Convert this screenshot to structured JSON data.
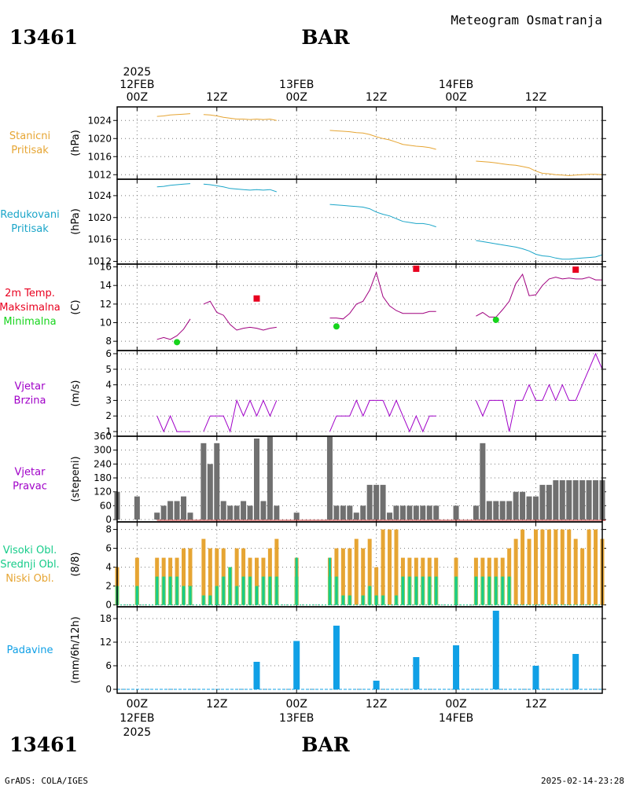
{
  "header": {
    "station_id": "13461",
    "station_name": "BAR",
    "subtitle": "Meteogram Osmatranja"
  },
  "footer": {
    "credit": "GrADS: COLA/IGES",
    "timestamp": "2025-02-14-23:28"
  },
  "time_axis": {
    "range_hours": [
      -3,
      70
    ],
    "ticks": [
      {
        "h": 0,
        "top": [
          "2025",
          "12FEB",
          "00Z"
        ],
        "bottom": [
          "00Z",
          "12FEB",
          "2025"
        ]
      },
      {
        "h": 12,
        "top": [
          "12Z"
        ],
        "bottom": [
          "12Z"
        ]
      },
      {
        "h": 24,
        "top": [
          "13FEB",
          "00Z"
        ],
        "bottom": [
          "00Z",
          "13FEB"
        ]
      },
      {
        "h": 36,
        "top": [
          "12Z"
        ],
        "bottom": [
          "12Z"
        ]
      },
      {
        "h": 48,
        "top": [
          "14FEB",
          "00Z"
        ],
        "bottom": [
          "00Z",
          "14FEB"
        ]
      },
      {
        "h": 60,
        "top": [
          "12Z"
        ],
        "bottom": [
          "12Z"
        ]
      }
    ]
  },
  "colors": {
    "station_pressure": "#e6a533",
    "reduced_pressure": "#1aa5c8",
    "temperature": "#a0007f",
    "max_temp": "#e8001f",
    "min_temp": "#16d41c",
    "wind_speed": "#a000c8",
    "wind_dir": "#707070",
    "wind_dir_base": "#c82828",
    "cloud_high": "#17cc8a",
    "cloud_mid": "#8acc58",
    "cloud_low": "#e6a533",
    "precip": "#10a0e6"
  },
  "chart_data": [
    {
      "type": "line",
      "name": "station-pressure",
      "labels": [
        "Stanicni",
        "Pritisak"
      ],
      "ylabel": "(hPa)",
      "ylim": [
        1011,
        1027
      ],
      "yticks": [
        1012,
        1016,
        1020,
        1024
      ],
      "series": [
        {
          "x": [
            3,
            4,
            5,
            6,
            7,
            8
          ],
          "y": [
            1024.9,
            1025.0,
            1025.2,
            1025.3,
            1025.4,
            1025.5
          ]
        },
        {
          "x": [
            10,
            11,
            12,
            13,
            14,
            15,
            16,
            17,
            18,
            19,
            20,
            21
          ],
          "y": [
            1025.3,
            1025.2,
            1025.0,
            1024.7,
            1024.5,
            1024.3,
            1024.3,
            1024.2,
            1024.3,
            1024.2,
            1024.3,
            1024.0
          ]
        },
        {
          "x": [
            29,
            30,
            31,
            32,
            33,
            34,
            35,
            36,
            37,
            38,
            39,
            40,
            41,
            42,
            43,
            44,
            45
          ],
          "y": [
            1021.8,
            1021.7,
            1021.6,
            1021.5,
            1021.3,
            1021.2,
            1020.9,
            1020.4,
            1020.0,
            1019.7,
            1019.2,
            1018.7,
            1018.5,
            1018.3,
            1018.2,
            1018.0,
            1017.6
          ]
        },
        {
          "x": [
            51,
            52,
            53,
            54,
            55,
            56,
            57,
            58,
            59,
            60,
            61,
            62,
            63,
            64,
            65,
            66,
            67,
            68,
            69,
            70
          ],
          "y": [
            1015.0,
            1014.9,
            1014.8,
            1014.6,
            1014.4,
            1014.2,
            1014.1,
            1013.8,
            1013.5,
            1012.8,
            1012.3,
            1012.2,
            1012.0,
            1011.9,
            1011.8,
            1011.9,
            1012.0,
            1012.1,
            1012.1,
            1012.0
          ]
        }
      ]
    },
    {
      "type": "line",
      "name": "reduced-pressure",
      "labels": [
        "Redukovani",
        "Pritisak"
      ],
      "ylabel": "(hPa)",
      "ylim": [
        1011.5,
        1027
      ],
      "yticks": [
        1012,
        1016,
        1020,
        1024
      ],
      "series": [
        {
          "x": [
            3,
            4,
            5,
            6,
            7,
            8
          ],
          "y": [
            1025.6,
            1025.7,
            1025.9,
            1026.0,
            1026.1,
            1026.2
          ]
        },
        {
          "x": [
            10,
            11,
            12,
            13,
            14,
            15,
            16,
            17,
            18,
            19,
            20,
            21
          ],
          "y": [
            1026.1,
            1026.0,
            1025.8,
            1025.6,
            1025.3,
            1025.2,
            1025.1,
            1025.0,
            1025.1,
            1025.0,
            1025.1,
            1024.7
          ]
        },
        {
          "x": [
            29,
            30,
            31,
            32,
            33,
            34,
            35,
            36,
            37,
            38,
            39,
            40,
            41,
            42,
            43,
            44,
            45
          ],
          "y": [
            1022.4,
            1022.3,
            1022.2,
            1022.1,
            1022.0,
            1021.9,
            1021.6,
            1021.0,
            1020.6,
            1020.3,
            1019.8,
            1019.3,
            1019.1,
            1018.9,
            1018.9,
            1018.7,
            1018.3
          ]
        },
        {
          "x": [
            51,
            52,
            53,
            54,
            55,
            56,
            57,
            58,
            59,
            60,
            61,
            62,
            63,
            64,
            65,
            66,
            67,
            68,
            69,
            70
          ],
          "y": [
            1015.8,
            1015.6,
            1015.4,
            1015.2,
            1015.0,
            1014.8,
            1014.6,
            1014.3,
            1013.9,
            1013.3,
            1013.0,
            1012.9,
            1012.6,
            1012.4,
            1012.4,
            1012.5,
            1012.6,
            1012.7,
            1012.8,
            1013.2
          ]
        }
      ]
    },
    {
      "type": "line",
      "name": "temperature",
      "labels": [
        "2m Temp.",
        "Maksimalna",
        "Minimalna"
      ],
      "ylabel": "(C)",
      "ylim": [
        7,
        16.3
      ],
      "yticks": [
        8,
        10,
        12,
        14,
        16
      ],
      "series": [
        {
          "x": [
            3,
            4,
            5,
            6,
            7,
            8
          ],
          "y": [
            8.2,
            8.4,
            8.2,
            8.6,
            9.3,
            10.4
          ]
        },
        {
          "x": [
            10,
            11,
            12,
            13,
            14,
            15,
            16,
            17,
            18,
            19,
            20,
            21
          ],
          "y": [
            12.0,
            12.3,
            11.1,
            10.8,
            9.8,
            9.2,
            9.4,
            9.5,
            9.4,
            9.2,
            9.4,
            9.5
          ]
        },
        {
          "x": [
            29,
            30,
            31,
            32,
            33,
            34,
            35,
            36,
            37,
            38,
            39,
            40,
            41,
            42,
            43,
            44,
            45
          ],
          "y": [
            10.5,
            10.5,
            10.4,
            11.0,
            12.0,
            12.3,
            13.5,
            15.4,
            12.8,
            11.8,
            11.3,
            11.0,
            11.0,
            11.0,
            11.0,
            11.2,
            11.2
          ]
        },
        {
          "x": [
            51,
            52,
            53,
            54,
            55,
            56,
            57,
            58,
            59,
            60,
            61,
            62,
            63,
            64,
            65,
            66,
            67,
            68,
            69,
            70
          ],
          "y": [
            10.7,
            11.1,
            10.6,
            10.6,
            11.4,
            12.3,
            14.2,
            15.2,
            12.9,
            13.0,
            14.0,
            14.7,
            14.9,
            14.7,
            14.8,
            14.7,
            14.7,
            14.9,
            14.6,
            14.6
          ]
        }
      ],
      "max_points": [
        {
          "x": 18,
          "y": 12.6
        },
        {
          "x": 42,
          "y": 15.8
        },
        {
          "x": 66,
          "y": 15.7
        }
      ],
      "min_points": [
        {
          "x": 6,
          "y": 7.9
        },
        {
          "x": 30,
          "y": 9.6
        },
        {
          "x": 54,
          "y": 10.3
        }
      ]
    },
    {
      "type": "line",
      "name": "wind-speed",
      "labels": [
        "Vjetar",
        "Brzina"
      ],
      "ylabel": "(m/s)",
      "ylim": [
        0.7,
        6.2
      ],
      "yticks": [
        1,
        2,
        3,
        4,
        5,
        6
      ],
      "series": [
        {
          "x": [
            3,
            4,
            5,
            6,
            7,
            8
          ],
          "y": [
            2,
            1,
            2,
            1,
            1,
            1
          ]
        },
        {
          "x": [
            10,
            11,
            12,
            13,
            14,
            15,
            16,
            17,
            18,
            19,
            20,
            21
          ],
          "y": [
            1,
            2,
            2,
            2,
            1,
            3,
            2,
            3,
            2,
            3,
            2,
            3
          ]
        },
        {
          "x": [
            29,
            30,
            31,
            32,
            33,
            34,
            35,
            36,
            37,
            38,
            39,
            40,
            41,
            42,
            43,
            44,
            45
          ],
          "y": [
            1,
            2,
            2,
            2,
            3,
            2,
            3,
            3,
            3,
            2,
            3,
            2,
            1,
            2,
            1,
            2,
            2
          ]
        },
        {
          "x": [
            51,
            52,
            53,
            54,
            55,
            56,
            57,
            58,
            59,
            60,
            61,
            62,
            63,
            64,
            65,
            66,
            67,
            68,
            69,
            70
          ],
          "y": [
            3,
            2,
            3,
            3,
            3,
            1,
            3,
            3,
            4,
            3,
            3,
            4,
            3,
            4,
            3,
            3,
            4,
            5,
            6,
            5
          ]
        }
      ]
    },
    {
      "type": "bar",
      "name": "wind-direction",
      "labels": [
        "Vjetar",
        "Pravac"
      ],
      "ylabel": "(stepeni)",
      "ylim": [
        -10,
        360
      ],
      "yticks": [
        0,
        60,
        120,
        180,
        240,
        300,
        360
      ],
      "x": [
        -3,
        0,
        3,
        4,
        5,
        6,
        7,
        8,
        10,
        11,
        12,
        13,
        14,
        15,
        16,
        17,
        18,
        19,
        20,
        21,
        24,
        29,
        30,
        31,
        32,
        33,
        34,
        35,
        36,
        37,
        38,
        39,
        40,
        41,
        42,
        43,
        44,
        45,
        48,
        51,
        52,
        53,
        54,
        55,
        56,
        57,
        58,
        59,
        60,
        61,
        62,
        63,
        64,
        65,
        66,
        67,
        68,
        69,
        70
      ],
      "values": [
        120,
        100,
        30,
        60,
        80,
        80,
        100,
        30,
        330,
        240,
        330,
        80,
        60,
        60,
        80,
        60,
        350,
        80,
        360,
        60,
        30,
        360,
        60,
        60,
        60,
        30,
        60,
        150,
        150,
        150,
        30,
        60,
        60,
        60,
        60,
        60,
        60,
        60,
        60,
        60,
        330,
        80,
        80,
        80,
        80,
        120,
        120,
        100,
        100,
        150,
        150,
        170,
        170,
        170,
        170,
        170,
        170,
        170,
        170
      ]
    },
    {
      "type": "bar",
      "name": "clouds",
      "labels": [
        "Visoki Obl.",
        "Srednji Obl.",
        "Niski Obl."
      ],
      "ylabel": "(8/8)",
      "ylim": [
        -0.2,
        8.8
      ],
      "yticks": [
        0,
        2,
        4,
        6,
        8
      ],
      "x": [
        -3,
        0,
        3,
        4,
        5,
        6,
        7,
        8,
        10,
        11,
        12,
        13,
        14,
        15,
        16,
        17,
        18,
        19,
        20,
        21,
        24,
        29,
        30,
        31,
        32,
        33,
        34,
        35,
        36,
        37,
        38,
        39,
        40,
        41,
        42,
        43,
        44,
        45,
        48,
        51,
        52,
        53,
        54,
        55,
        56,
        57,
        58,
        59,
        60,
        61,
        62,
        63,
        64,
        65,
        66,
        67,
        68,
        69,
        70
      ],
      "series": [
        {
          "name": "Visoki Obl.",
          "values": [
            2,
            2,
            3,
            3,
            3,
            3,
            2,
            2,
            1,
            1,
            2,
            3,
            4,
            2,
            3,
            3,
            2,
            3,
            3,
            3,
            5,
            5,
            3,
            1,
            1,
            0,
            1,
            2,
            1,
            1,
            0,
            1,
            3,
            3,
            3,
            3,
            3,
            3,
            3,
            3,
            3,
            3,
            3,
            3,
            3,
            0,
            0,
            0,
            0,
            0,
            0,
            0,
            0,
            0,
            0,
            0,
            0,
            0,
            0
          ]
        },
        {
          "name": "Srednji Obl.",
          "values": [
            2,
            2,
            3,
            3,
            3,
            3,
            2,
            2,
            1,
            1,
            2,
            3,
            4,
            2,
            3,
            3,
            2,
            3,
            3,
            3,
            3,
            3,
            3,
            1,
            1,
            0,
            1,
            2,
            1,
            1,
            0,
            1,
            3,
            3,
            3,
            3,
            3,
            3,
            3,
            3,
            3,
            3,
            3,
            3,
            3,
            0,
            0,
            0,
            0,
            0,
            0,
            0,
            0,
            0,
            0,
            0,
            0,
            0,
            0
          ]
        },
        {
          "name": "Niski Obl.",
          "values": [
            4,
            5,
            5,
            5,
            5,
            5,
            6,
            6,
            7,
            6,
            6,
            6,
            4,
            6,
            6,
            5,
            5,
            5,
            6,
            7,
            5,
            5,
            6,
            6,
            6,
            7,
            6,
            7,
            4,
            8,
            8,
            8,
            5,
            5,
            5,
            5,
            5,
            5,
            5,
            5,
            5,
            5,
            5,
            5,
            6,
            7,
            8,
            7,
            8,
            8,
            8,
            8,
            8,
            8,
            7,
            6,
            8,
            8,
            7
          ]
        }
      ]
    },
    {
      "type": "bar",
      "name": "precipitation",
      "labels": [
        "Padavine"
      ],
      "ylabel": "(mm/6h/12h)",
      "ylim": [
        -1,
        21
      ],
      "yticks": [
        0,
        6,
        12,
        18
      ],
      "x": [
        18,
        24,
        30,
        36,
        42,
        48,
        54,
        60,
        66
      ],
      "values": [
        7,
        12.3,
        16.2,
        2.2,
        8.2,
        11.2,
        20,
        6,
        9
      ]
    }
  ]
}
